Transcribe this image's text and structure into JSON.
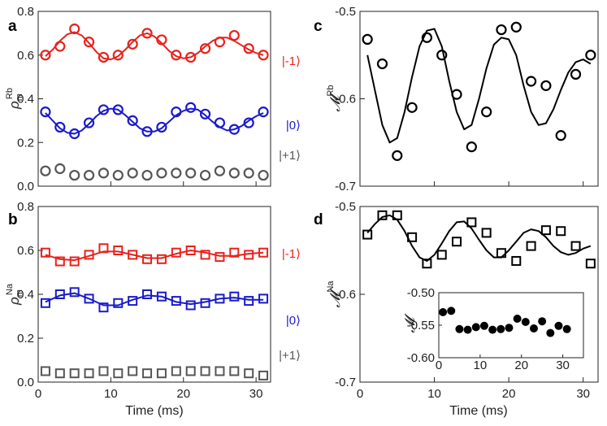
{
  "figure": {
    "x_axis_label": "Time (ms)"
  },
  "chart_data": [
    {
      "id": "a",
      "panel_label": "a",
      "type": "scatter",
      "ylabel": "ρ",
      "ylabel_sub": "m",
      "ylabel_sup": "Rb",
      "xlim": [
        0,
        32
      ],
      "ylim": [
        0.0,
        0.8
      ],
      "xticks": [
        "0",
        "10",
        "20",
        "30"
      ],
      "yticks": [
        "0.0",
        "0.2",
        "0.4",
        "0.6",
        "0.8"
      ],
      "marker": "circle",
      "show_xticklabels": false,
      "series": [
        {
          "name": "|-1⟩",
          "color": "#e8221c",
          "x": [
            1,
            3,
            5,
            7,
            9,
            11,
            13,
            15,
            17,
            19,
            21,
            23,
            25,
            27,
            29,
            31
          ],
          "y": [
            0.6,
            0.64,
            0.72,
            0.66,
            0.59,
            0.6,
            0.65,
            0.7,
            0.67,
            0.6,
            0.59,
            0.63,
            0.66,
            0.69,
            0.63,
            0.6
          ],
          "fit_x": [
            1,
            2,
            3,
            4,
            5,
            6,
            7,
            8,
            9,
            10,
            11,
            12,
            13,
            14,
            15,
            16,
            17,
            18,
            19,
            20,
            21,
            22,
            23,
            24,
            25,
            26,
            27,
            28,
            29,
            30,
            31
          ],
          "fit_y": [
            0.595,
            0.625,
            0.665,
            0.695,
            0.705,
            0.69,
            0.655,
            0.615,
            0.585,
            0.58,
            0.595,
            0.625,
            0.66,
            0.69,
            0.7,
            0.685,
            0.655,
            0.62,
            0.595,
            0.585,
            0.59,
            0.61,
            0.64,
            0.665,
            0.68,
            0.68,
            0.665,
            0.645,
            0.625,
            0.61,
            0.6
          ]
        },
        {
          "name": "|0⟩",
          "color": "#1a1acd",
          "x": [
            1,
            3,
            5,
            7,
            9,
            11,
            13,
            15,
            17,
            19,
            21,
            23,
            25,
            27,
            29,
            31
          ],
          "y": [
            0.34,
            0.27,
            0.24,
            0.29,
            0.35,
            0.35,
            0.3,
            0.25,
            0.27,
            0.34,
            0.36,
            0.33,
            0.29,
            0.26,
            0.29,
            0.34
          ],
          "fit_x": [
            1,
            2,
            3,
            4,
            5,
            6,
            7,
            8,
            9,
            10,
            11,
            12,
            13,
            14,
            15,
            16,
            17,
            18,
            19,
            20,
            21,
            22,
            23,
            24,
            25,
            26,
            27,
            28,
            29,
            30,
            31
          ],
          "fit_y": [
            0.335,
            0.3,
            0.265,
            0.245,
            0.24,
            0.255,
            0.285,
            0.32,
            0.345,
            0.355,
            0.35,
            0.325,
            0.295,
            0.265,
            0.25,
            0.25,
            0.265,
            0.295,
            0.325,
            0.345,
            0.355,
            0.35,
            0.325,
            0.295,
            0.27,
            0.255,
            0.26,
            0.275,
            0.3,
            0.32,
            0.335
          ]
        },
        {
          "name": "|+1⟩",
          "color": "#555555",
          "x": [
            1,
            3,
            5,
            7,
            9,
            11,
            13,
            15,
            17,
            19,
            21,
            23,
            25,
            27,
            29,
            31
          ],
          "y": [
            0.07,
            0.08,
            0.05,
            0.05,
            0.06,
            0.05,
            0.06,
            0.05,
            0.06,
            0.06,
            0.06,
            0.05,
            0.07,
            0.06,
            0.06,
            0.05
          ]
        }
      ]
    },
    {
      "id": "b",
      "panel_label": "b",
      "type": "scatter",
      "ylabel": "ρ",
      "ylabel_sub": "m",
      "ylabel_sup": "Na",
      "xlim": [
        0,
        32
      ],
      "ylim": [
        0.0,
        0.8
      ],
      "xticks": [
        "0",
        "10",
        "20",
        "30"
      ],
      "yticks": [
        "0.0",
        "0.2",
        "0.4",
        "0.6",
        "0.8"
      ],
      "marker": "square",
      "show_xticklabels": true,
      "series": [
        {
          "name": "|-1⟩",
          "color": "#e8221c",
          "x": [
            1,
            3,
            5,
            7,
            9,
            11,
            13,
            15,
            17,
            19,
            21,
            23,
            25,
            27,
            29,
            31
          ],
          "y": [
            0.59,
            0.55,
            0.55,
            0.58,
            0.61,
            0.6,
            0.58,
            0.56,
            0.56,
            0.59,
            0.6,
            0.58,
            0.57,
            0.59,
            0.58,
            0.59
          ],
          "fit_x": [
            1,
            3,
            5,
            7,
            9,
            11,
            13,
            15,
            17,
            19,
            21,
            23,
            25,
            27,
            29,
            31
          ],
          "fit_y": [
            0.58,
            0.56,
            0.555,
            0.575,
            0.595,
            0.595,
            0.58,
            0.565,
            0.565,
            0.585,
            0.6,
            0.59,
            0.575,
            0.575,
            0.585,
            0.59
          ]
        },
        {
          "name": "|0⟩",
          "color": "#1a1acd",
          "x": [
            1,
            3,
            5,
            7,
            9,
            11,
            13,
            15,
            17,
            19,
            21,
            23,
            25,
            27,
            29,
            31
          ],
          "y": [
            0.36,
            0.4,
            0.41,
            0.38,
            0.34,
            0.36,
            0.37,
            0.4,
            0.39,
            0.37,
            0.35,
            0.36,
            0.38,
            0.39,
            0.37,
            0.38
          ],
          "fit_x": [
            1,
            3,
            5,
            7,
            9,
            11,
            13,
            15,
            17,
            19,
            21,
            23,
            25,
            27,
            29,
            31
          ],
          "fit_y": [
            0.365,
            0.395,
            0.405,
            0.38,
            0.35,
            0.35,
            0.375,
            0.395,
            0.39,
            0.365,
            0.355,
            0.365,
            0.38,
            0.385,
            0.375,
            0.375
          ]
        },
        {
          "name": "|+1⟩",
          "color": "#555555",
          "x": [
            1,
            3,
            5,
            7,
            9,
            11,
            13,
            15,
            17,
            19,
            21,
            23,
            25,
            27,
            29,
            31
          ],
          "y": [
            0.05,
            0.04,
            0.04,
            0.04,
            0.05,
            0.04,
            0.05,
            0.04,
            0.04,
            0.05,
            0.05,
            0.05,
            0.05,
            0.05,
            0.04,
            0.03
          ]
        }
      ]
    },
    {
      "id": "c",
      "panel_label": "c",
      "type": "scatter",
      "ylabel": "𝓜",
      "ylabel_sup": "Rb",
      "xlim": [
        0,
        32
      ],
      "ylim": [
        -0.7,
        -0.5
      ],
      "xticks": [
        "0",
        "10",
        "20",
        "30"
      ],
      "yticks": [
        "-0.7",
        "-0.6",
        "-0.5"
      ],
      "marker": "circle",
      "show_xticklabels": false,
      "series": [
        {
          "name": "M Rb",
          "color": "#000000",
          "x": [
            1,
            3,
            5,
            7,
            9,
            11,
            13,
            15,
            17,
            19,
            21,
            23,
            25,
            27,
            29,
            31
          ],
          "y": [
            -0.532,
            -0.56,
            -0.665,
            -0.61,
            -0.53,
            -0.55,
            -0.595,
            -0.655,
            -0.615,
            -0.521,
            -0.518,
            -0.58,
            -0.585,
            -0.642,
            -0.572,
            -0.55
          ],
          "fit_x": [
            1,
            2,
            3,
            4,
            5,
            6,
            7,
            8,
            9,
            10,
            11,
            12,
            13,
            14,
            15,
            16,
            17,
            18,
            19,
            20,
            21,
            22,
            23,
            24,
            25,
            26,
            27,
            28,
            29,
            30,
            31
          ],
          "fit_y": [
            -0.55,
            -0.59,
            -0.63,
            -0.65,
            -0.645,
            -0.615,
            -0.575,
            -0.54,
            -0.522,
            -0.52,
            -0.54,
            -0.58,
            -0.615,
            -0.635,
            -0.63,
            -0.6,
            -0.565,
            -0.538,
            -0.53,
            -0.532,
            -0.55,
            -0.585,
            -0.615,
            -0.63,
            -0.628,
            -0.612,
            -0.59,
            -0.57,
            -0.558,
            -0.555,
            -0.56
          ]
        }
      ]
    },
    {
      "id": "d",
      "panel_label": "d",
      "type": "scatter",
      "ylabel": "𝓜",
      "ylabel_sup": "Na",
      "xlim": [
        0,
        32
      ],
      "ylim": [
        -0.7,
        -0.5
      ],
      "xticks": [
        "0",
        "10",
        "20",
        "30"
      ],
      "yticks": [
        "-0.7",
        "-0.6",
        "-0.5"
      ],
      "marker": "square",
      "show_xticklabels": true,
      "series": [
        {
          "name": "M Na",
          "color": "#000000",
          "x": [
            1,
            3,
            5,
            7,
            9,
            11,
            13,
            15,
            17,
            19,
            21,
            23,
            25,
            27,
            29,
            31
          ],
          "y": [
            -0.532,
            -0.51,
            -0.51,
            -0.535,
            -0.565,
            -0.555,
            -0.54,
            -0.518,
            -0.53,
            -0.553,
            -0.562,
            -0.545,
            -0.527,
            -0.528,
            -0.545,
            -0.565
          ],
          "fit_x": [
            1,
            2,
            3,
            4,
            5,
            6,
            7,
            8,
            9,
            10,
            11,
            12,
            13,
            14,
            15,
            16,
            17,
            18,
            19,
            20,
            21,
            22,
            23,
            24,
            25,
            26,
            27,
            28,
            29,
            30,
            31
          ],
          "fit_y": [
            -0.53,
            -0.52,
            -0.512,
            -0.51,
            -0.515,
            -0.528,
            -0.545,
            -0.558,
            -0.562,
            -0.555,
            -0.542,
            -0.528,
            -0.518,
            -0.517,
            -0.525,
            -0.538,
            -0.55,
            -0.558,
            -0.558,
            -0.55,
            -0.54,
            -0.53,
            -0.526,
            -0.528,
            -0.535,
            -0.545,
            -0.552,
            -0.555,
            -0.553,
            -0.548,
            -0.545
          ]
        }
      ]
    },
    {
      "id": "d-inset",
      "type": "scatter",
      "ylabel": "𝓜",
      "xlim": [
        0,
        35
      ],
      "ylim": [
        -0.6,
        -0.5
      ],
      "xticks": [
        "0",
        "10",
        "20",
        "30"
      ],
      "yticks": [
        "-0.60",
        "-0.55",
        "-0.50"
      ],
      "marker": "filled-circle",
      "series": [
        {
          "name": "M",
          "color": "#000000",
          "x": [
            1,
            3,
            5,
            7,
            9,
            11,
            13,
            15,
            17,
            19,
            21,
            23,
            25,
            27,
            29,
            31
          ],
          "y": [
            -0.53,
            -0.528,
            -0.556,
            -0.557,
            -0.553,
            -0.551,
            -0.557,
            -0.556,
            -0.554,
            -0.54,
            -0.545,
            -0.555,
            -0.544,
            -0.562,
            -0.551,
            -0.556
          ]
        }
      ]
    }
  ]
}
